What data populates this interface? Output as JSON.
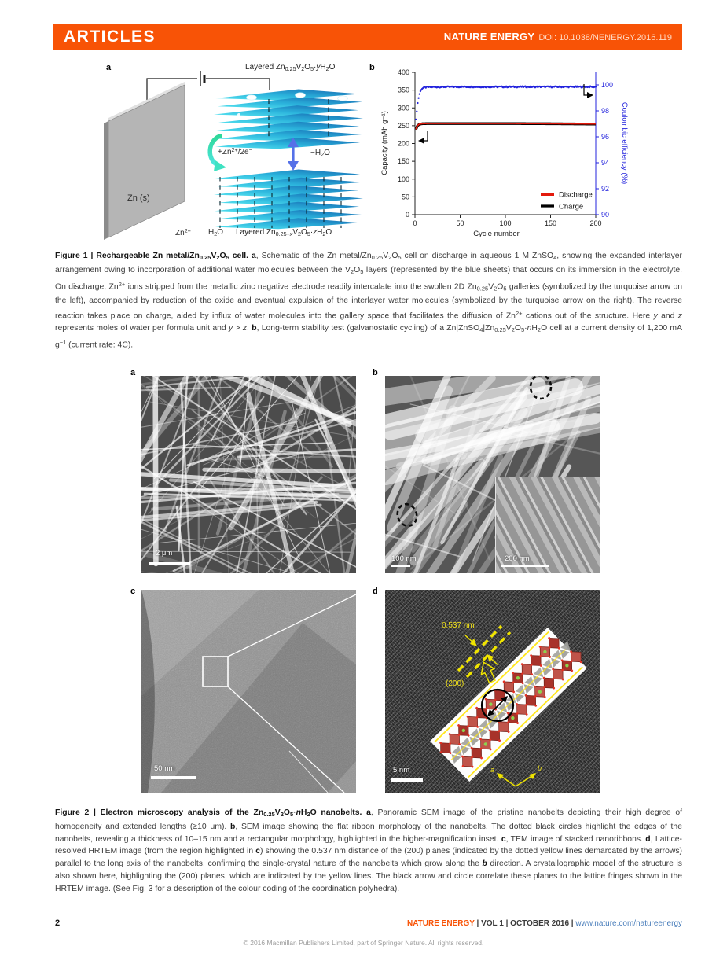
{
  "colors": {
    "accent": "#f85306",
    "link": "#4a7ebb",
    "efficiency_blue": "#2323dd",
    "discharge_red": "#e31a0c",
    "charge_black": "#000000",
    "sheet_cyan": "#59e8f2",
    "sheet_blue": "#1565b0",
    "annotation_yellow": "#f0e11a"
  },
  "header": {
    "articles": "ARTICLES",
    "journal": "NATURE ENERGY",
    "doi": "DOI: 10.1038/NENERGY.2016.119"
  },
  "figure1": {
    "label_a": "a",
    "label_b": "b",
    "schematic": {
      "top_label": [
        {
          "t": "Layered Zn"
        },
        {
          "t": "0.25",
          "sub": true
        },
        {
          "t": "V"
        },
        {
          "t": "2",
          "sub": true
        },
        {
          "t": "O"
        },
        {
          "t": "5",
          "sub": true
        },
        {
          "t": "·"
        },
        {
          "t": "y",
          "i": true
        },
        {
          "t": "H"
        },
        {
          "t": "2",
          "sub": true
        },
        {
          "t": "O"
        }
      ],
      "bottom_label": [
        {
          "t": "Layered Zn"
        },
        {
          "t": "0.25+",
          "sub": true
        },
        {
          "t": "x",
          "sub": true,
          "i": true
        },
        {
          "t": "V"
        },
        {
          "t": "2",
          "sub": true
        },
        {
          "t": "O"
        },
        {
          "t": "5",
          "sub": true
        },
        {
          "t": "·"
        },
        {
          "t": "z",
          "i": true
        },
        {
          "t": "H"
        },
        {
          "t": "2",
          "sub": true
        },
        {
          "t": "O"
        }
      ],
      "electrode_label": "Zn (s)",
      "ion_label": [
        {
          "t": "Zn"
        },
        {
          "t": "2+",
          "sup": true
        }
      ],
      "water_label": [
        {
          "t": "H"
        },
        {
          "t": "2",
          "sub": true
        },
        {
          "t": "O"
        }
      ],
      "insertion_label": [
        {
          "t": "+Zn"
        },
        {
          "t": "2+",
          "sup": true
        },
        {
          "t": "/2e"
        },
        {
          "t": "−",
          "sup": true
        }
      ],
      "dehydration_label": [
        {
          "t": "−H"
        },
        {
          "t": "2",
          "sub": true
        },
        {
          "t": "O"
        }
      ]
    },
    "chart_data": {
      "type": "line+scatter",
      "xlabel": "Cycle number",
      "ylabel_left": "Capacity (mAh g⁻¹)",
      "ylabel_right": "Coulombic efficiency (%)",
      "xlim": [
        0,
        200
      ],
      "xticks": [
        0,
        50,
        100,
        150,
        200
      ],
      "ylim_left": [
        0,
        400
      ],
      "yticks_left": [
        0,
        50,
        100,
        150,
        200,
        250,
        300,
        350,
        400
      ],
      "ylim_right": [
        90,
        100
      ],
      "yticks_right": [
        90,
        92,
        94,
        96,
        98,
        100
      ],
      "grid": false,
      "legend_position": "lower right",
      "series": [
        {
          "name": "Discharge",
          "color": "#e31a0c",
          "axis": "left",
          "style": "line",
          "keypoints": [
            [
              1,
              240
            ],
            [
              2,
              247
            ],
            [
              3,
              251
            ],
            [
              5,
              254.5
            ],
            [
              8,
              256
            ],
            [
              15,
              256.5
            ],
            [
              50,
              256.5
            ],
            [
              100,
              256.5
            ],
            [
              150,
              256
            ],
            [
              200,
              255
            ]
          ]
        },
        {
          "name": "Charge",
          "color": "#000000",
          "axis": "left",
          "style": "line",
          "keypoints": [
            [
              1,
              239
            ],
            [
              2,
              246
            ],
            [
              3,
              250.5
            ],
            [
              5,
              254
            ],
            [
              8,
              255.5
            ],
            [
              15,
              256
            ],
            [
              50,
              256
            ],
            [
              100,
              256
            ],
            [
              150,
              255.5
            ],
            [
              200,
              254.5
            ]
          ]
        },
        {
          "name": "Coulombic efficiency",
          "color": "#2323dd",
          "axis": "right",
          "style": "dots",
          "keypoints": [
            [
              1,
              97.3
            ],
            [
              2,
              98.0
            ],
            [
              3,
              98.6
            ],
            [
              4,
              99.0
            ],
            [
              5,
              99.3
            ],
            [
              6,
              99.5
            ],
            [
              7,
              99.65
            ],
            [
              8,
              99.72
            ],
            [
              10,
              99.8
            ],
            [
              15,
              99.83
            ],
            [
              50,
              99.85
            ],
            [
              100,
              99.85
            ],
            [
              150,
              99.85
            ],
            [
              200,
              99.85
            ]
          ]
        }
      ],
      "legend": [
        "Discharge",
        "Charge"
      ]
    }
  },
  "figure1_caption": [
    {
      "t": "Figure 1 | Rechargeable Zn metal/Zn",
      "b": true
    },
    {
      "t": "0.25",
      "b": true,
      "sub": true
    },
    {
      "t": "V",
      "b": true
    },
    {
      "t": "2",
      "b": true,
      "sub": true
    },
    {
      "t": "O",
      "b": true
    },
    {
      "t": "5",
      "b": true,
      "sub": true
    },
    {
      "t": " cell. ",
      "b": true
    },
    {
      "t": "a",
      "b": true
    },
    {
      "t": ", Schematic of the Zn metal/Zn"
    },
    {
      "t": "0.25",
      "sub": true
    },
    {
      "t": "V"
    },
    {
      "t": "2",
      "sub": true
    },
    {
      "t": "O"
    },
    {
      "t": "5",
      "sub": true
    },
    {
      "t": " cell on discharge in aqueous 1 M ZnSO"
    },
    {
      "t": "4",
      "sub": true
    },
    {
      "t": ", showing the expanded interlayer arrangement owing to incorporation of additional water molecules between the V"
    },
    {
      "t": "2",
      "sub": true
    },
    {
      "t": "O"
    },
    {
      "t": "5",
      "sub": true
    },
    {
      "t": " layers (represented by the blue sheets) that occurs on its immersion in the electrolyte. On discharge, Zn"
    },
    {
      "t": "2+",
      "sup": true
    },
    {
      "t": " ions stripped from the metallic zinc negative electrode readily intercalate into the swollen 2D Zn"
    },
    {
      "t": "0.25",
      "sub": true
    },
    {
      "t": "V"
    },
    {
      "t": "2",
      "sub": true
    },
    {
      "t": "O"
    },
    {
      "t": "5",
      "sub": true
    },
    {
      "t": " galleries (symbolized by the turquoise arrow on the left), accompanied by reduction of the oxide and eventual expulsion of the interlayer water molecules (symbolized by the turquoise arrow on the right). The reverse reaction takes place on charge, aided by influx of water molecules into the gallery space that facilitates the diffusion of Zn"
    },
    {
      "t": "2+",
      "sup": true
    },
    {
      "t": " cations out of the structure. Here "
    },
    {
      "t": "y",
      "i": true
    },
    {
      "t": " and "
    },
    {
      "t": "z",
      "i": true
    },
    {
      "t": " represents moles of water per formula unit and "
    },
    {
      "t": "y",
      "i": true
    },
    {
      "t": " > "
    },
    {
      "t": "z",
      "i": true
    },
    {
      "t": ". "
    },
    {
      "t": "b",
      "b": true
    },
    {
      "t": ", Long-term stability test (galvanostatic cycling) of a Zn|ZnSO"
    },
    {
      "t": "4",
      "sub": true
    },
    {
      "t": "|Zn"
    },
    {
      "t": "0.25",
      "sub": true
    },
    {
      "t": "V"
    },
    {
      "t": "2",
      "sub": true
    },
    {
      "t": "O"
    },
    {
      "t": "5",
      "sub": true
    },
    {
      "t": "·"
    },
    {
      "t": "n",
      "i": true
    },
    {
      "t": "H"
    },
    {
      "t": "2",
      "sub": true
    },
    {
      "t": "O cell at a current density of 1,200 mA g"
    },
    {
      "t": "−1",
      "sup": true
    },
    {
      "t": " (current rate: 4C)."
    }
  ],
  "figure2": {
    "panel_a": {
      "label": "a",
      "scalebar": "2 μm"
    },
    "panel_b": {
      "label": "b",
      "scalebar": "100 nm",
      "inset_scalebar": "200 nm"
    },
    "panel_c": {
      "label": "c",
      "scalebar": "50 nm"
    },
    "panel_d": {
      "label": "d",
      "scalebar": "5 nm",
      "distance": "0.537 nm",
      "plane": "(200)",
      "axis_a": "a",
      "axis_b": "b"
    }
  },
  "figure2_caption": [
    {
      "t": "Figure 2 | Electron microscopy analysis of the Zn",
      "b": true
    },
    {
      "t": "0.25",
      "b": true,
      "sub": true
    },
    {
      "t": "V",
      "b": true
    },
    {
      "t": "2",
      "b": true,
      "sub": true
    },
    {
      "t": "O",
      "b": true
    },
    {
      "t": "5",
      "b": true,
      "sub": true
    },
    {
      "t": "·",
      "b": true
    },
    {
      "t": "n",
      "b": true,
      "i": true
    },
    {
      "t": "H",
      "b": true
    },
    {
      "t": "2",
      "b": true,
      "sub": true
    },
    {
      "t": "O nanobelts. ",
      "b": true
    },
    {
      "t": "a",
      "b": true
    },
    {
      "t": ", Panoramic SEM image of the pristine nanobelts depicting their high degree of homogeneity and extended lengths (≥10 μm). "
    },
    {
      "t": "b",
      "b": true
    },
    {
      "t": ", SEM image showing the flat ribbon morphology of the nanobelts. The dotted black circles highlight the edges of the nanobelts, revealing a thickness of 10–15 nm and a rectangular morphology, highlighted in the higher-magnification inset. "
    },
    {
      "t": "c",
      "b": true
    },
    {
      "t": ", TEM image of stacked nanoribbons. "
    },
    {
      "t": "d",
      "b": true
    },
    {
      "t": ", Lattice-resolved HRTEM image (from the region highlighted in "
    },
    {
      "t": "c",
      "b": true
    },
    {
      "t": ") showing the 0.537 nm distance of the (200) planes (indicated by the dotted yellow lines demarcated by the arrows) parallel to the long axis of the nanobelts, confirming the single-crystal nature of the nanobelts which grow along the "
    },
    {
      "t": "b",
      "b": true,
      "i": true
    },
    {
      "t": " direction. A crystallographic model of the structure is also shown here, highlighting the (200) planes, which are indicated by the yellow lines. The black arrow and circle correlate these planes to the lattice fringes shown in the HRTEM image. (See Fig. 3 for a description of the colour coding of the coordination polyhedra)."
    }
  ],
  "footer": {
    "page": "2",
    "journal": "NATURE ENERGY",
    "volume": " | VOL 1 | OCTOBER 2016 | ",
    "url": "www.nature.com/natureenergy",
    "copyright": "© 2016 Macmillan Publishers Limited, part of Springer Nature. All rights reserved."
  }
}
